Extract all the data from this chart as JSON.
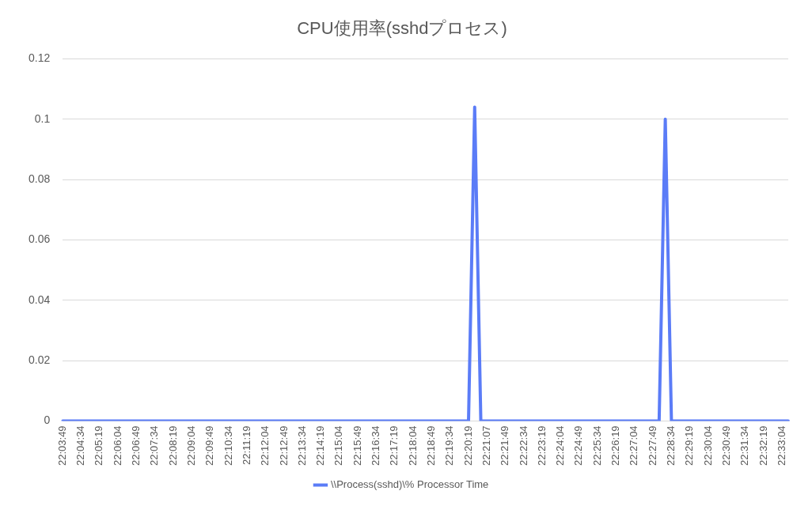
{
  "chart_data": {
    "type": "line",
    "title": "CPU使用率(sshdプロセス)",
    "categories": [
      "22:03:49",
      null,
      null,
      "22:04:34",
      null,
      null,
      "22:05:19",
      null,
      null,
      "22:06:04",
      null,
      null,
      "22:06:49",
      null,
      null,
      "22:07:34",
      null,
      null,
      "22:08:19",
      null,
      null,
      "22:09:04",
      null,
      null,
      "22:09:49",
      null,
      null,
      "22:10:34",
      null,
      null,
      "22:11:19",
      null,
      null,
      "22:12:04",
      null,
      null,
      "22:12:49",
      null,
      null,
      "22:13:34",
      null,
      null,
      "22:14:19",
      null,
      null,
      "22:15:04",
      null,
      null,
      "22:15:49",
      null,
      null,
      "22:16:34",
      null,
      null,
      "22:17:19",
      null,
      null,
      "22:18:04",
      null,
      null,
      "22:18:49",
      null,
      null,
      "22:19:34",
      null,
      null,
      "22:20:19",
      null,
      null,
      "22:21:07",
      null,
      null,
      "22:21:49",
      null,
      null,
      "22:22:34",
      null,
      null,
      "22:23:19",
      null,
      null,
      "22:24:04",
      null,
      null,
      "22:24:49",
      null,
      null,
      "22:25:34",
      null,
      null,
      "22:26:19",
      null,
      null,
      "22:27:04",
      null,
      null,
      "22:27:49",
      null,
      null,
      "22:28:34",
      null,
      null,
      "22:29:19",
      null,
      null,
      "22:30:04",
      null,
      null,
      "22:30:49",
      null,
      null,
      "22:31:34",
      null,
      null,
      "22:32:19",
      null,
      null,
      "22:33:04",
      null
    ],
    "series": [
      {
        "name": "\\\\Process(sshd)\\% Processor Time",
        "color": "#5b7cf7",
        "values": [
          0,
          0,
          0,
          0,
          0,
          0,
          0,
          0,
          0,
          0,
          0,
          0,
          0,
          0,
          0,
          0,
          0,
          0,
          0,
          0,
          0,
          0,
          0,
          0,
          0,
          0,
          0,
          0,
          0,
          0,
          0,
          0,
          0,
          0,
          0,
          0,
          0,
          0,
          0,
          0,
          0,
          0,
          0,
          0,
          0,
          0,
          0,
          0,
          0,
          0,
          0,
          0,
          0,
          0,
          0,
          0,
          0,
          0,
          0,
          0,
          0,
          0,
          0,
          0,
          0,
          0,
          0,
          0.104,
          0,
          0,
          0,
          0,
          0,
          0,
          0,
          0,
          0,
          0,
          0,
          0,
          0,
          0,
          0,
          0,
          0,
          0,
          0,
          0,
          0,
          0,
          0,
          0,
          0,
          0,
          0,
          0,
          0,
          0,
          0.1,
          0,
          0,
          0,
          0,
          0,
          0,
          0,
          0,
          0,
          0,
          0,
          0,
          0,
          0,
          0,
          0,
          0,
          0,
          0,
          0
        ]
      }
    ],
    "ylim": [
      0,
      0.12
    ],
    "yticks": [
      0,
      0.02,
      0.04,
      0.06,
      0.08,
      0.1,
      0.12
    ],
    "grid": "y",
    "legend": "bottom",
    "marker": "none",
    "line_style": "solid"
  }
}
